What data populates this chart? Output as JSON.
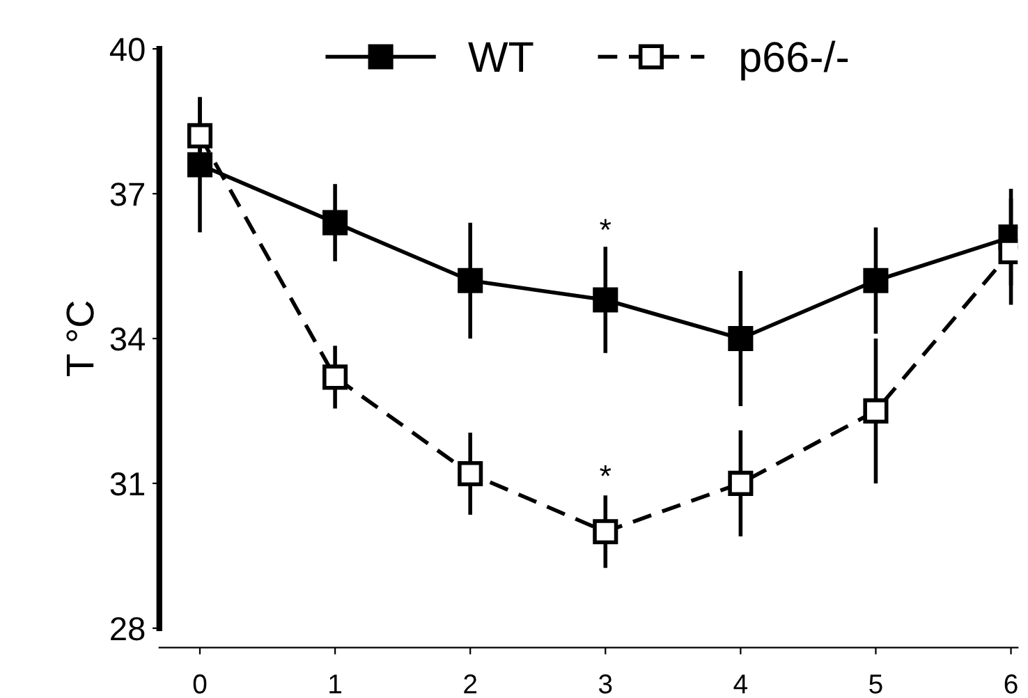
{
  "chart_data": {
    "type": "line",
    "ylabel": "T °C",
    "x": [
      0,
      1,
      2,
      3,
      4,
      5,
      6
    ],
    "xlim": [
      -0.3,
      6.05
    ],
    "xticks": [
      0,
      1,
      2,
      3,
      4,
      5,
      6
    ],
    "ylim": [
      28,
      40
    ],
    "yticks": [
      28,
      31,
      34,
      37,
      40
    ],
    "grid": false,
    "legend": "top",
    "marker": "square",
    "series": [
      {
        "name": "WT",
        "color": "#000000",
        "line_style": "solid",
        "values": [
          37.6,
          36.4,
          35.2,
          34.8,
          34.0,
          35.2,
          36.1
        ],
        "errors": [
          1.4,
          0.8,
          1.2,
          1.1,
          1.4,
          1.1,
          1.0
        ]
      },
      {
        "name": "p66-/-",
        "color": "#000000",
        "line_style": "dashed",
        "values": [
          38.2,
          33.2,
          31.2,
          30.0,
          31.0,
          32.5,
          35.8
        ],
        "errors": [
          0.8,
          0.65,
          0.85,
          0.75,
          1.1,
          1.5,
          1.1
        ]
      }
    ],
    "annotations": [
      {
        "text": "*",
        "x": 3,
        "y": 35.9
      },
      {
        "text": "*",
        "x": 3,
        "y": 30.8
      }
    ]
  }
}
